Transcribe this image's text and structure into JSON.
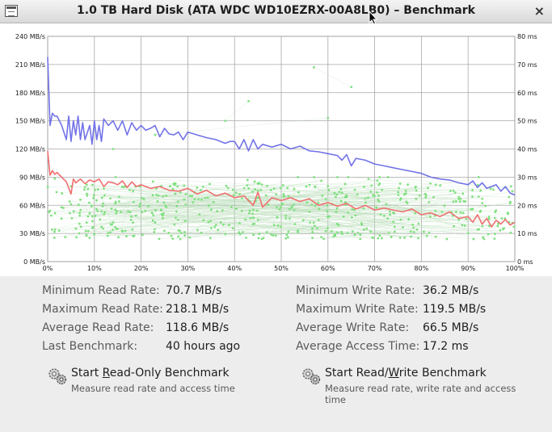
{
  "window": {
    "title": "1.0 TB Hard Disk (ATA WDC WD10EZRX-00A8LB0) – Benchmark",
    "close_glyph": "×",
    "menu_icon": "window-menu-icon",
    "close_icon": "close-icon"
  },
  "chart_data": {
    "type": "line",
    "x_ticks": [
      "0%",
      "10%",
      "20%",
      "30%",
      "40%",
      "50%",
      "60%",
      "70%",
      "80%",
      "90%",
      "100%"
    ],
    "y_left_ticks": [
      "0 MB/s",
      "30 MB/s",
      "60 MB/s",
      "90 MB/s",
      "120 MB/s",
      "150 MB/s",
      "180 MB/s",
      "210 MB/s",
      "240 MB/s"
    ],
    "y_right_ticks": [
      "0 ms",
      "10 ms",
      "20 ms",
      "30 ms",
      "40 ms",
      "50 ms",
      "60 ms",
      "70 ms",
      "80 ms"
    ],
    "xlim": [
      0,
      100
    ],
    "ylim_left": [
      0,
      240
    ],
    "ylim_right": [
      0,
      80
    ],
    "grid": true,
    "series": [
      {
        "color": "#7373e8",
        "axis": "left",
        "x": [
          0,
          0.5,
          1,
          1.5,
          2,
          3,
          4,
          4.5,
          5,
          5.5,
          6,
          6.5,
          7,
          7.5,
          8,
          9,
          9.5,
          10,
          10.5,
          11,
          11.5,
          12,
          13,
          14,
          15,
          16,
          17,
          18,
          19,
          20,
          21,
          22,
          23,
          24,
          25,
          26,
          27,
          28,
          29,
          30,
          32,
          34,
          36,
          38,
          39,
          40,
          41,
          42,
          43,
          44,
          45,
          46,
          48,
          50,
          52,
          54,
          56,
          58,
          60,
          62,
          63,
          64,
          65,
          66,
          68,
          70,
          72,
          74,
          76,
          78,
          80,
          82,
          84,
          86,
          88,
          90,
          91,
          92,
          93,
          94,
          95,
          96,
          97,
          98,
          99,
          100
        ],
        "y": [
          218,
          145,
          158,
          155,
          155,
          145,
          130,
          155,
          128,
          150,
          135,
          155,
          130,
          148,
          130,
          145,
          125,
          150,
          130,
          145,
          128,
          152,
          145,
          150,
          140,
          150,
          135,
          148,
          140,
          145,
          140,
          142,
          145,
          133,
          142,
          136,
          135,
          138,
          130,
          138,
          135,
          132,
          130,
          126,
          128,
          128,
          120,
          130,
          118,
          130,
          120,
          125,
          122,
          125,
          120,
          123,
          118,
          117,
          115,
          113,
          108,
          114,
          102,
          110,
          108,
          104,
          102,
          100,
          98,
          96,
          94,
          90,
          88,
          87,
          84,
          82,
          86,
          79,
          84,
          78,
          80,
          82,
          75,
          80,
          73,
          71
        ]
      },
      {
        "color": "#f07070",
        "axis": "left",
        "x": [
          0,
          0.5,
          1,
          1.5,
          2,
          3,
          4,
          5,
          5.5,
          6,
          7,
          8,
          9,
          10,
          11,
          12,
          13,
          14,
          15,
          16,
          17,
          18,
          19,
          20,
          22,
          24,
          26,
          28,
          30,
          32,
          34,
          36,
          38,
          40,
          42,
          44,
          45,
          46,
          48,
          50,
          52,
          54,
          56,
          58,
          60,
          62,
          64,
          66,
          68,
          70,
          72,
          74,
          76,
          78,
          80,
          82,
          84,
          86,
          88,
          90,
          91,
          92,
          93,
          94,
          95,
          96,
          97,
          98,
          99,
          100
        ],
        "y": [
          118,
          92,
          97,
          93,
          95,
          90,
          85,
          72,
          88,
          84,
          88,
          83,
          87,
          85,
          88,
          80,
          85,
          84,
          82,
          86,
          79,
          85,
          80,
          82,
          78,
          80,
          76,
          75,
          78,
          72,
          76,
          70,
          73,
          68,
          70,
          60,
          74,
          58,
          68,
          65,
          68,
          64,
          67,
          60,
          63,
          59,
          62,
          56,
          60,
          55,
          57,
          55,
          53,
          56,
          50,
          52,
          48,
          53,
          46,
          48,
          42,
          50,
          40,
          46,
          37,
          44,
          40,
          45,
          39,
          42
        ]
      },
      {
        "color": "#7fe07f",
        "axis": "right",
        "type": "scatter"
      }
    ]
  },
  "stats": {
    "read": [
      {
        "label": "Minimum Read Rate:",
        "value": "70.7 MB/s"
      },
      {
        "label": "Maximum Read Rate:",
        "value": "218.1 MB/s"
      },
      {
        "label": "Average Read Rate:",
        "value": "118.6 MB/s"
      },
      {
        "label": "Last Benchmark:",
        "value": "40 hours ago"
      }
    ],
    "write": [
      {
        "label": "Minimum Write Rate:",
        "value": "36.2 MB/s"
      },
      {
        "label": "Maximum Write Rate:",
        "value": "119.5 MB/s"
      },
      {
        "label": "Average Write Rate:",
        "value": "66.5 MB/s"
      },
      {
        "label": "Average Access Time:",
        "value": "17.2 ms"
      }
    ]
  },
  "buttons": {
    "read_only": {
      "title_pre": "Start ",
      "title_mnemonic": "R",
      "title_post": "ead-Only Benchmark",
      "description": "Measure read rate and access time",
      "icon": "gears-icon"
    },
    "read_write": {
      "title_pre": "Start Read/",
      "title_mnemonic": "W",
      "title_post": "rite Benchmark",
      "description": "Measure read rate, write rate and access time",
      "icon": "gears-icon"
    }
  }
}
